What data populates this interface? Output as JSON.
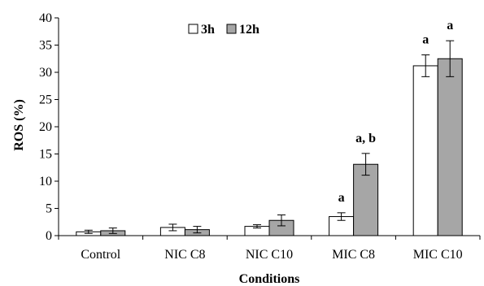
{
  "chart_data": {
    "type": "bar",
    "title": "",
    "xlabel": "Conditions",
    "ylabel": "ROS (%)",
    "ylim": [
      0,
      40
    ],
    "yticks": [
      0,
      5,
      10,
      15,
      20,
      25,
      30,
      35,
      40
    ],
    "grid": false,
    "legend_position": "top-center",
    "categories": [
      "Control",
      "NIC C8",
      "NIC C10",
      "MIC C8",
      "MIC C10"
    ],
    "series": [
      {
        "name": "3h",
        "color": "#ffffff",
        "values": [
          0.7,
          1.5,
          1.7,
          3.5,
          31.2
        ],
        "errors": [
          0.3,
          0.6,
          0.3,
          0.7,
          2.0
        ],
        "annotations": [
          "",
          "",
          "",
          "a",
          "a"
        ]
      },
      {
        "name": "12h",
        "color": "#a6a6a6",
        "values": [
          0.9,
          1.1,
          2.8,
          13.1,
          32.5
        ],
        "errors": [
          0.5,
          0.6,
          1.0,
          2.0,
          3.3
        ],
        "annotations": [
          "",
          "",
          "",
          "a, b",
          "a"
        ]
      }
    ]
  }
}
